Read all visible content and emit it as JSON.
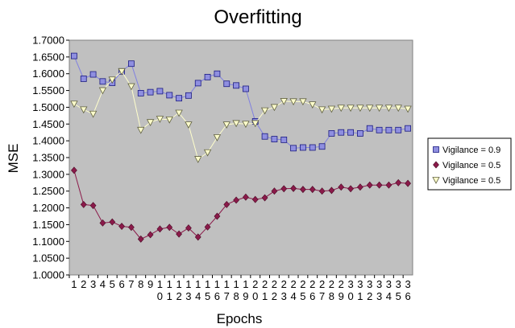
{
  "chart_data": {
    "type": "line",
    "title": "Overfitting",
    "xlabel": "Epochs",
    "ylabel": "MSE",
    "ylim": [
      1.0,
      1.7
    ],
    "yticks": [
      "1.0000",
      "1.0500",
      "1.1000",
      "1.1500",
      "1.2000",
      "1.2500",
      "1.3000",
      "1.3500",
      "1.4000",
      "1.4500",
      "1.5000",
      "1.5500",
      "1.6000",
      "1.6500",
      "1.7000"
    ],
    "categories": [
      "1",
      "2",
      "3",
      "4",
      "5",
      "6",
      "7",
      "8",
      "9",
      "10",
      "11",
      "12",
      "13",
      "14",
      "15",
      "16",
      "17",
      "18",
      "19",
      "20",
      "21",
      "22",
      "23",
      "24",
      "25",
      "26",
      "27",
      "28",
      "29",
      "30",
      "31",
      "32",
      "33",
      "34",
      "35",
      "36"
    ],
    "grid": false,
    "legend_position": "right",
    "series": [
      {
        "name": "Vigilance = 0.9",
        "color": "#8f8fe0",
        "marker": "square",
        "values": [
          1.653,
          1.585,
          1.598,
          1.577,
          1.573,
          1.607,
          1.63,
          1.542,
          1.545,
          1.548,
          1.536,
          1.527,
          1.535,
          1.572,
          1.59,
          1.6,
          1.57,
          1.565,
          1.555,
          1.458,
          1.413,
          1.405,
          1.403,
          1.378,
          1.38,
          1.38,
          1.383,
          1.422,
          1.425,
          1.425,
          1.422,
          1.437,
          1.432,
          1.432,
          1.432,
          1.437
        ]
      },
      {
        "name": "Vigilance = 0.5",
        "color": "#8b1a4a",
        "marker": "diamond",
        "values": [
          1.312,
          1.21,
          1.207,
          1.155,
          1.158,
          1.145,
          1.142,
          1.107,
          1.12,
          1.137,
          1.142,
          1.122,
          1.14,
          1.113,
          1.143,
          1.175,
          1.21,
          1.223,
          1.232,
          1.225,
          1.23,
          1.25,
          1.257,
          1.258,
          1.255,
          1.255,
          1.25,
          1.252,
          1.262,
          1.257,
          1.262,
          1.268,
          1.268,
          1.268,
          1.275,
          1.273
        ]
      },
      {
        "name": "Vigilance = 0.5",
        "color": "#ffffcc",
        "marker": "triangle-down",
        "values": [
          1.51,
          1.493,
          1.48,
          1.55,
          1.582,
          1.607,
          1.562,
          1.432,
          1.455,
          1.465,
          1.463,
          1.483,
          1.448,
          1.345,
          1.365,
          1.41,
          1.448,
          1.452,
          1.45,
          1.452,
          1.49,
          1.5,
          1.518,
          1.517,
          1.517,
          1.508,
          1.493,
          1.495,
          1.498,
          1.498,
          1.498,
          1.498,
          1.498,
          1.498,
          1.498,
          1.495
        ]
      }
    ]
  }
}
